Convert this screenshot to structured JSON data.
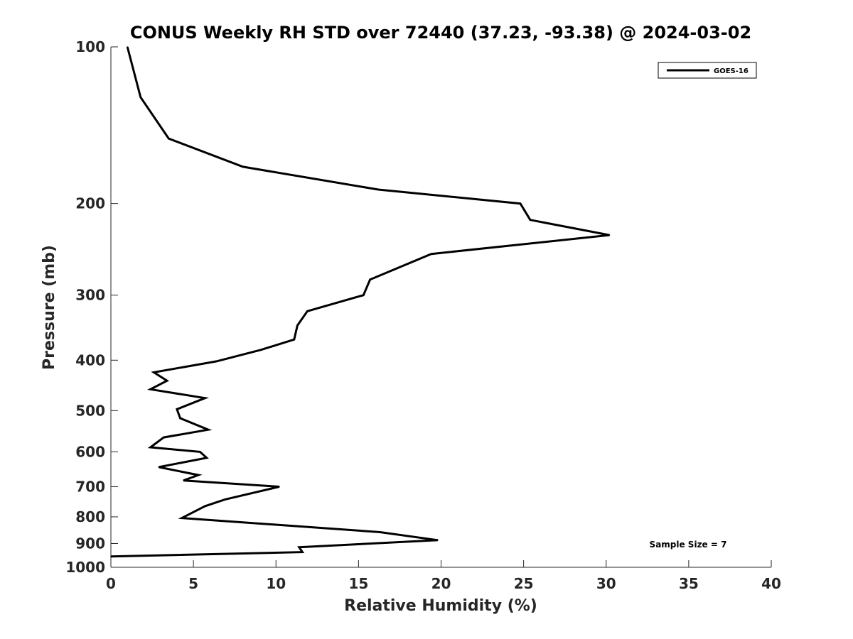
{
  "chart_data": {
    "type": "line",
    "title": "CONUS Weekly RH STD over 72440 (37.23, -93.38) @ 2024-03-02",
    "xlabel": "Relative Humidity (%)",
    "ylabel": "Pressure (mb)",
    "xlim": [
      0,
      40
    ],
    "ylim": [
      100,
      1000
    ],
    "y_scale": "log",
    "y_reversed": true,
    "x_ticks": [
      0,
      5,
      10,
      15,
      20,
      25,
      30,
      35,
      40
    ],
    "y_ticks": [
      100,
      200,
      300,
      400,
      500,
      600,
      700,
      800,
      900,
      1000
    ],
    "grid": false,
    "legend_position": "top-right",
    "line_color": "#000000",
    "series": [
      {
        "name": "GOES-16",
        "points": [
          [
            1.0,
            100
          ],
          [
            1.8,
            125
          ],
          [
            3.5,
            150
          ],
          [
            8.0,
            170
          ],
          [
            16.2,
            188
          ],
          [
            24.8,
            200
          ],
          [
            25.4,
            215
          ],
          [
            30.2,
            230
          ],
          [
            19.4,
            250
          ],
          [
            15.7,
            280
          ],
          [
            15.3,
            300
          ],
          [
            11.9,
            322
          ],
          [
            11.3,
            343
          ],
          [
            11.1,
            365
          ],
          [
            9.1,
            382
          ],
          [
            6.4,
            402
          ],
          [
            2.6,
            422
          ],
          [
            3.4,
            438
          ],
          [
            2.4,
            455
          ],
          [
            5.7,
            473
          ],
          [
            4.0,
            497
          ],
          [
            4.2,
            517
          ],
          [
            5.9,
            544
          ],
          [
            3.2,
            563
          ],
          [
            2.4,
            588
          ],
          [
            5.4,
            600
          ],
          [
            5.8,
            616
          ],
          [
            2.9,
            642
          ],
          [
            5.3,
            665
          ],
          [
            4.4,
            681
          ],
          [
            10.2,
            700
          ],
          [
            6.9,
            741
          ],
          [
            5.7,
            763
          ],
          [
            4.3,
            804
          ],
          [
            16.3,
            856
          ],
          [
            19.8,
            887
          ],
          [
            11.4,
            915
          ],
          [
            11.6,
            935
          ],
          [
            0.0,
            953
          ]
        ]
      }
    ],
    "annotation": "Sample Size = 7"
  }
}
